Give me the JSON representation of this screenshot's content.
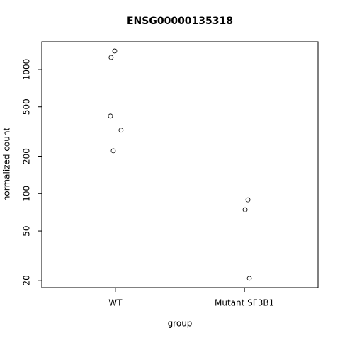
{
  "chart_data": {
    "type": "scatter",
    "title": "ENSG00000135318",
    "x_label": "group",
    "y_label": "normalized count",
    "series": [
      {
        "color": "#000000",
        "x": [
          0.995,
          0.967,
          0.962,
          1.044,
          0.984,
          2.027,
          2.005,
          2.038
        ],
        "values": [
          1407,
          1250,
          421,
          324,
          221,
          89,
          74,
          20.8
        ]
      }
    ],
    "xlim": [
      0.43,
      2.57
    ],
    "xticks": [
      {
        "value": 1,
        "label": "WT"
      },
      {
        "value": 2,
        "label": "Mutant SF3B1"
      }
    ],
    "ylim": [
      17.5,
      1668
    ],
    "ylog": true,
    "yticks": [
      20,
      50,
      100,
      200,
      500,
      1000
    ]
  }
}
